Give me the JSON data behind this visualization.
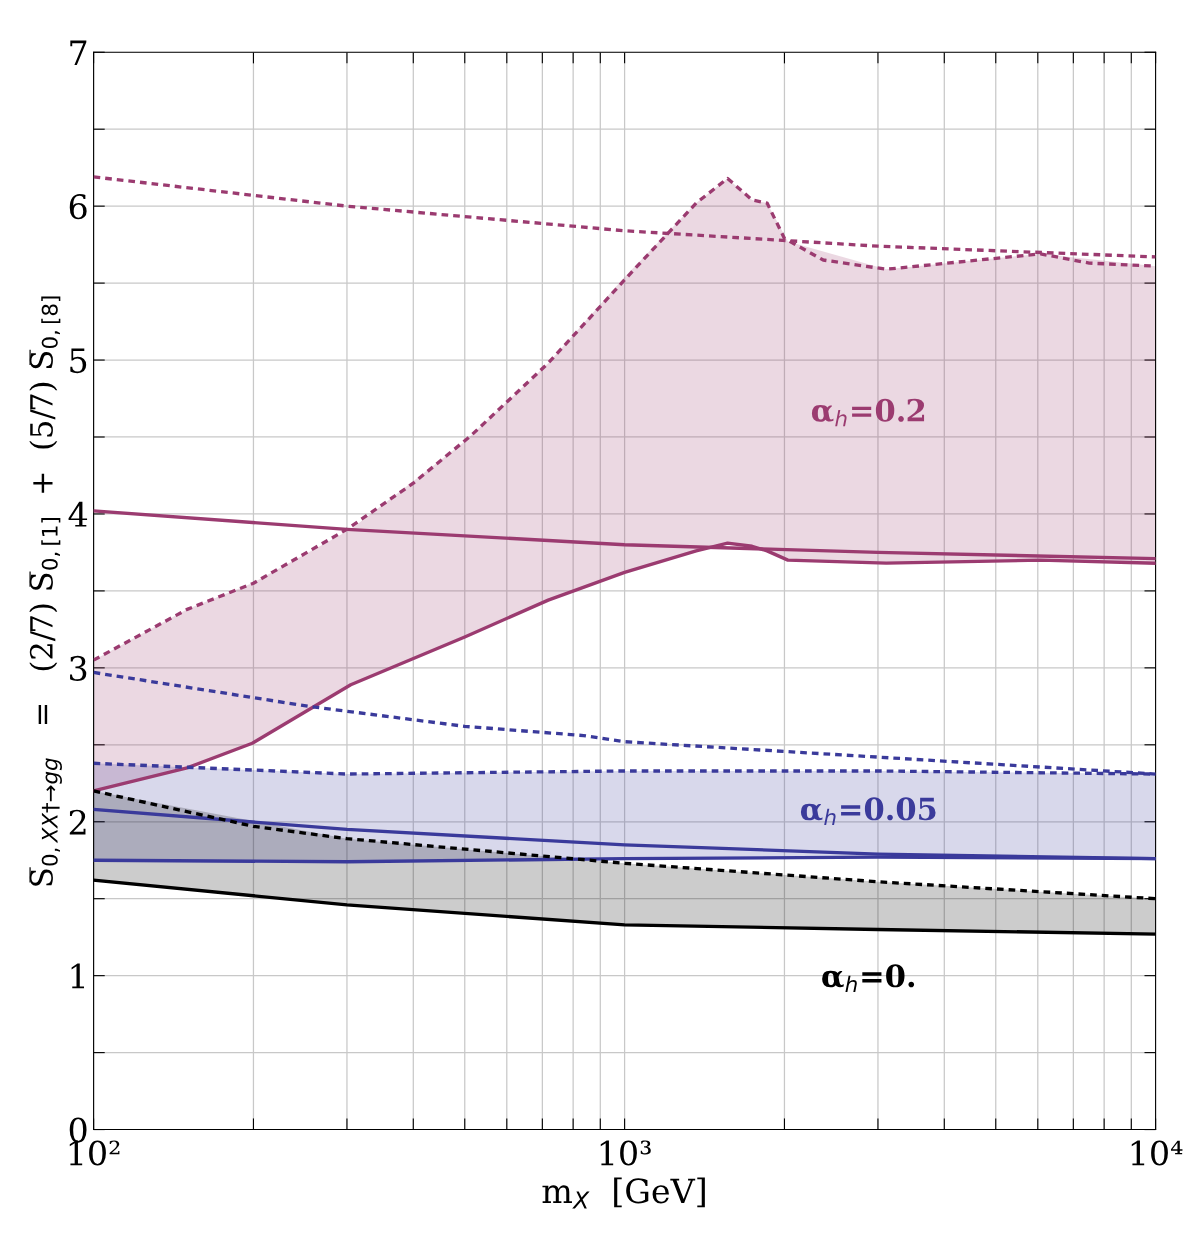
{
  "chart_data": {
    "type": "line",
    "xlabel": "m$_{X}$  [GeV]",
    "ylabel": "S̅$_{0,XX†→gg}$   =   (2/7) S̅$_{0,[1]}$  +  (5/7) S̅$_{0,[8]}$",
    "log": "x",
    "grid": true,
    "xlim": [
      100,
      10000
    ],
    "ylim": [
      0,
      7
    ],
    "xticks": [
      {
        "value": 100,
        "label": "10²"
      },
      {
        "value": 200,
        "label": null
      },
      {
        "value": 300,
        "label": null
      },
      {
        "value": 400,
        "label": null
      },
      {
        "value": 500,
        "label": null
      },
      {
        "value": 600,
        "label": null
      },
      {
        "value": 700,
        "label": null
      },
      {
        "value": 800,
        "label": null
      },
      {
        "value": 900,
        "label": null
      },
      {
        "value": 1000,
        "label": "10³"
      },
      {
        "value": 2000,
        "label": null
      },
      {
        "value": 3000,
        "label": null
      },
      {
        "value": 4000,
        "label": null
      },
      {
        "value": 5000,
        "label": null
      },
      {
        "value": 6000,
        "label": null
      },
      {
        "value": 7000,
        "label": null
      },
      {
        "value": 8000,
        "label": null
      },
      {
        "value": 9000,
        "label": null
      },
      {
        "value": 10000,
        "label": "10⁴"
      }
    ],
    "yticks": [
      0,
      {
        "value": 0.5,
        "label": null
      },
      1,
      {
        "value": 1.5,
        "label": null
      },
      2,
      {
        "value": 2.5,
        "label": null
      },
      3,
      {
        "value": 3.5,
        "label": null
      },
      4,
      {
        "value": 4.5,
        "label": null
      },
      5,
      {
        "value": 5.5,
        "label": null
      },
      6,
      {
        "value": 6.5,
        "label": null
      },
      7
    ],
    "series": [
      {
        "color": "#9b3b70",
        "line_style": "dotted",
        "x": [
          100,
          300,
          1000,
          3000,
          10000
        ],
        "values": [
          6.19,
          6.0,
          5.84,
          5.74,
          5.67
        ]
      },
      {
        "color": "#9b3b70",
        "line_style": "solid",
        "x": [
          100,
          300,
          1000,
          3000,
          10000
        ],
        "values": [
          4.02,
          3.9,
          3.8,
          3.75,
          3.71
        ]
      },
      {
        "color": "#9b3b70",
        "line_style": "dotted",
        "x": [
          100,
          150,
          200,
          300,
          400,
          514,
          718,
          1037,
          1364,
          1563,
          1738,
          1855,
          2000,
          2366,
          3110,
          6070,
          7500,
          10000
        ],
        "values": [
          3.05,
          3.38,
          3.55,
          3.9,
          4.2,
          4.51,
          4.98,
          5.58,
          6.02,
          6.18,
          6.04,
          6.02,
          5.79,
          5.65,
          5.59,
          5.69,
          5.63,
          5.61
        ]
      },
      {
        "color": "#9b3b70",
        "line_style": "solid",
        "x": [
          100,
          150,
          199,
          305,
          500,
          718,
          1000,
          1364,
          1563,
          1738,
          1855,
          2030,
          3110,
          6070,
          10000
        ],
        "values": [
          2.2,
          2.35,
          2.51,
          2.89,
          3.2,
          3.44,
          3.62,
          3.76,
          3.81,
          3.79,
          3.76,
          3.7,
          3.68,
          3.7,
          3.68
        ],
        "upper": [
          3.05,
          3.38,
          3.55,
          3.9,
          4.47,
          4.98,
          5.54,
          6.02,
          6.18,
          6.04,
          6.02,
          5.77,
          5.59,
          5.69,
          5.61
        ],
        "lower": [
          2.2,
          2.35,
          2.51,
          2.89,
          3.2,
          3.44,
          3.62,
          3.76,
          3.81,
          3.79,
          3.76,
          3.7,
          3.68,
          3.7,
          3.68
        ]
      },
      {
        "color": "#3a3a9b",
        "line_style": "dotted",
        "x": [
          100,
          254,
          500,
          837,
          1000,
          3000,
          10000
        ],
        "values": [
          2.97,
          2.75,
          2.62,
          2.56,
          2.52,
          2.42,
          2.31
        ]
      },
      {
        "color": "#3a3a9b",
        "line_style": "solid",
        "x": [
          100,
          300,
          1000,
          3000,
          10000
        ],
        "values": [
          2.08,
          1.95,
          1.85,
          1.79,
          1.76
        ]
      },
      {
        "color": "#3a3a9b",
        "line_style": "dotted",
        "x": [
          100,
          300,
          1000,
          3000,
          10000
        ],
        "values": [
          2.38,
          2.31,
          2.33,
          2.33,
          2.31
        ]
      },
      {
        "color": "#3a3a9b",
        "line_style": "solid",
        "x": [
          100,
          300,
          1000,
          3000,
          10000
        ],
        "values": [
          1.75,
          1.74,
          1.76,
          1.77,
          1.76
        ],
        "upper": [
          2.38,
          2.31,
          2.33,
          2.33,
          2.31
        ],
        "lower": [
          1.75,
          1.74,
          1.76,
          1.77,
          1.76
        ]
      },
      {
        "color": "#000000",
        "line_style": "dotted",
        "x": [
          100,
          200,
          300,
          1000,
          3000,
          10000
        ],
        "values": [
          2.2,
          1.97,
          1.89,
          1.73,
          1.61,
          1.5
        ]
      },
      {
        "color": "#000000",
        "line_style": "solid",
        "x": [
          100,
          300,
          1000,
          3000,
          10000
        ],
        "values": [
          1.62,
          1.46,
          1.33,
          1.3,
          1.27
        ],
        "upper": [
          2.2,
          1.89,
          1.73,
          1.61,
          1.5
        ],
        "lower": [
          1.62,
          1.46,
          1.33,
          1.3,
          1.27
        ]
      }
    ],
    "annotations": [
      "α$_{h}$=0.2",
      "α$_{h}$=0.05",
      "α$_{h}$=0."
    ]
  }
}
